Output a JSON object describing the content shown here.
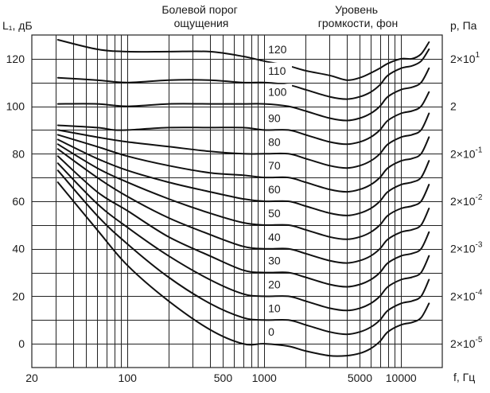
{
  "chart_data": {
    "type": "line",
    "title": "Уровень громкости, фон",
    "annotation": "Болевой порог ощущения",
    "y_label_left": "L₁, дБ",
    "y_label_right": "p, Па",
    "x_label": "f, Гц",
    "x_scale": "log",
    "x_range": [
      20,
      20000
    ],
    "y_range": [
      -10,
      130
    ],
    "grid": true,
    "x_ticks": [
      {
        "v": 20,
        "t": "20"
      },
      {
        "v": 100,
        "t": "100"
      },
      {
        "v": 500,
        "t": "500"
      },
      {
        "v": 1000,
        "t": "1000"
      },
      {
        "v": 5000,
        "t": "5000"
      },
      {
        "v": 10000,
        "t": "10000"
      }
    ],
    "y_ticks": [
      {
        "v": 120,
        "t": "120"
      },
      {
        "v": 100,
        "t": "100"
      },
      {
        "v": 80,
        "t": "80"
      },
      {
        "v": 60,
        "t": "60"
      },
      {
        "v": 40,
        "t": "40"
      },
      {
        "v": 20,
        "t": "20"
      },
      {
        "v": 0,
        "t": "0"
      }
    ],
    "right_ticks": [
      {
        "v": 120,
        "base": "2×10",
        "exp": "1"
      },
      {
        "v": 100,
        "base": "2",
        "exp": ""
      },
      {
        "v": 80,
        "base": "2×10",
        "exp": "-1"
      },
      {
        "v": 60,
        "base": "2×10",
        "exp": "-2"
      },
      {
        "v": 40,
        "base": "2×10",
        "exp": "-3"
      },
      {
        "v": 20,
        "base": "2×10",
        "exp": "-4"
      },
      {
        "v": 0,
        "base": "2×10",
        "exp": "-5"
      }
    ],
    "series": [
      {
        "name": "0",
        "label": "0",
        "points": [
          [
            31,
            68
          ],
          [
            60,
            48
          ],
          [
            100,
            33
          ],
          [
            200,
            18
          ],
          [
            400,
            6
          ],
          [
            700,
            0
          ],
          [
            1000,
            0
          ],
          [
            1500,
            -1
          ],
          [
            2000,
            -3
          ],
          [
            3000,
            -5
          ],
          [
            4000,
            -5
          ],
          [
            5000,
            -4
          ],
          [
            6000,
            -2
          ],
          [
            7000,
            1
          ],
          [
            8000,
            5
          ],
          [
            10000,
            8
          ],
          [
            12000,
            9
          ],
          [
            14000,
            11
          ],
          [
            16000,
            17
          ]
        ]
      },
      {
        "name": "10",
        "label": "10",
        "points": [
          [
            31,
            73
          ],
          [
            60,
            54
          ],
          [
            100,
            42
          ],
          [
            200,
            28
          ],
          [
            400,
            17
          ],
          [
            700,
            11
          ],
          [
            1000,
            10
          ],
          [
            1500,
            10
          ],
          [
            2000,
            8
          ],
          [
            3000,
            5
          ],
          [
            4000,
            4
          ],
          [
            5000,
            5
          ],
          [
            6000,
            7
          ],
          [
            7000,
            10
          ],
          [
            8000,
            14
          ],
          [
            10000,
            17
          ],
          [
            12000,
            18
          ],
          [
            14000,
            20
          ],
          [
            16000,
            27
          ]
        ]
      },
      {
        "name": "20",
        "label": "20",
        "points": [
          [
            31,
            76
          ],
          [
            60,
            59
          ],
          [
            100,
            49
          ],
          [
            200,
            37
          ],
          [
            400,
            27
          ],
          [
            700,
            21
          ],
          [
            1000,
            20
          ],
          [
            1500,
            20
          ],
          [
            2000,
            18
          ],
          [
            3000,
            15
          ],
          [
            4000,
            14
          ],
          [
            5000,
            15
          ],
          [
            6000,
            17
          ],
          [
            7000,
            20
          ],
          [
            8000,
            24
          ],
          [
            10000,
            27
          ],
          [
            12000,
            28
          ],
          [
            14000,
            30
          ],
          [
            16000,
            37
          ]
        ]
      },
      {
        "name": "30",
        "label": "30",
        "points": [
          [
            31,
            79
          ],
          [
            60,
            64
          ],
          [
            100,
            56
          ],
          [
            200,
            45
          ],
          [
            400,
            37
          ],
          [
            700,
            31
          ],
          [
            1000,
            30
          ],
          [
            1500,
            30
          ],
          [
            2000,
            28
          ],
          [
            3000,
            25
          ],
          [
            4000,
            24
          ],
          [
            5000,
            25
          ],
          [
            6000,
            27
          ],
          [
            7000,
            30
          ],
          [
            8000,
            34
          ],
          [
            10000,
            37
          ],
          [
            12000,
            38
          ],
          [
            14000,
            40
          ],
          [
            16000,
            47
          ]
        ]
      },
      {
        "name": "40",
        "label": "40",
        "points": [
          [
            31,
            82
          ],
          [
            60,
            70
          ],
          [
            100,
            62
          ],
          [
            200,
            53
          ],
          [
            400,
            46
          ],
          [
            700,
            41
          ],
          [
            1000,
            40
          ],
          [
            1500,
            40
          ],
          [
            2000,
            38
          ],
          [
            3000,
            35
          ],
          [
            4000,
            34
          ],
          [
            5000,
            35
          ],
          [
            6000,
            37
          ],
          [
            7000,
            40
          ],
          [
            8000,
            44
          ],
          [
            10000,
            47
          ],
          [
            12000,
            48
          ],
          [
            14000,
            50
          ],
          [
            16000,
            57
          ]
        ]
      },
      {
        "name": "50",
        "label": "50",
        "points": [
          [
            31,
            84
          ],
          [
            60,
            74
          ],
          [
            100,
            68
          ],
          [
            200,
            61
          ],
          [
            400,
            55
          ],
          [
            700,
            51
          ],
          [
            1000,
            50
          ],
          [
            1500,
            50
          ],
          [
            2000,
            48
          ],
          [
            3000,
            45
          ],
          [
            4000,
            44
          ],
          [
            5000,
            45
          ],
          [
            6000,
            47
          ],
          [
            7000,
            50
          ],
          [
            8000,
            54
          ],
          [
            10000,
            57
          ],
          [
            12000,
            58
          ],
          [
            14000,
            60
          ],
          [
            16000,
            67
          ]
        ]
      },
      {
        "name": "60",
        "label": "60",
        "points": [
          [
            31,
            86
          ],
          [
            60,
            78
          ],
          [
            100,
            73
          ],
          [
            200,
            68
          ],
          [
            400,
            64
          ],
          [
            700,
            61
          ],
          [
            1000,
            60
          ],
          [
            1500,
            60
          ],
          [
            2000,
            58
          ],
          [
            3000,
            55
          ],
          [
            4000,
            54
          ],
          [
            5000,
            55
          ],
          [
            6000,
            57
          ],
          [
            7000,
            60
          ],
          [
            8000,
            64
          ],
          [
            10000,
            67
          ],
          [
            12000,
            68
          ],
          [
            14000,
            70
          ],
          [
            16000,
            77
          ]
        ]
      },
      {
        "name": "70",
        "label": "70",
        "points": [
          [
            31,
            88
          ],
          [
            60,
            83
          ],
          [
            100,
            79
          ],
          [
            200,
            75
          ],
          [
            400,
            72
          ],
          [
            700,
            71
          ],
          [
            1000,
            70
          ],
          [
            1500,
            70
          ],
          [
            2000,
            68
          ],
          [
            3000,
            65
          ],
          [
            4000,
            64
          ],
          [
            5000,
            65
          ],
          [
            6000,
            67
          ],
          [
            7000,
            70
          ],
          [
            8000,
            74
          ],
          [
            10000,
            77
          ],
          [
            12000,
            78
          ],
          [
            14000,
            80
          ],
          [
            16000,
            87
          ]
        ]
      },
      {
        "name": "80",
        "label": "80",
        "points": [
          [
            31,
            90
          ],
          [
            60,
            87
          ],
          [
            100,
            85
          ],
          [
            200,
            83
          ],
          [
            400,
            81
          ],
          [
            700,
            80
          ],
          [
            1000,
            80
          ],
          [
            1500,
            80
          ],
          [
            2000,
            78
          ],
          [
            3000,
            75
          ],
          [
            4000,
            74
          ],
          [
            5000,
            75
          ],
          [
            6000,
            77
          ],
          [
            7000,
            80
          ],
          [
            8000,
            84
          ],
          [
            10000,
            87
          ],
          [
            12000,
            88
          ],
          [
            14000,
            90
          ],
          [
            16000,
            97
          ]
        ]
      },
      {
        "name": "90",
        "label": "90",
        "points": [
          [
            31,
            92
          ],
          [
            60,
            91
          ],
          [
            80,
            90
          ],
          [
            100,
            90
          ],
          [
            200,
            91
          ],
          [
            400,
            91
          ],
          [
            700,
            91
          ],
          [
            1000,
            90
          ],
          [
            1500,
            90
          ],
          [
            2000,
            88
          ],
          [
            3000,
            85
          ],
          [
            4000,
            84
          ],
          [
            5000,
            85
          ],
          [
            6000,
            87
          ],
          [
            7000,
            90
          ],
          [
            8000,
            94
          ],
          [
            10000,
            97
          ],
          [
            12000,
            98
          ],
          [
            14000,
            100
          ],
          [
            16000,
            106
          ]
        ]
      },
      {
        "name": "100",
        "label": "100",
        "points": [
          [
            31,
            101
          ],
          [
            60,
            101
          ],
          [
            100,
            100
          ],
          [
            200,
            101
          ],
          [
            400,
            101
          ],
          [
            700,
            101
          ],
          [
            1000,
            101
          ],
          [
            1500,
            100
          ],
          [
            2000,
            98
          ],
          [
            3000,
            95
          ],
          [
            4000,
            94
          ],
          [
            5000,
            95
          ],
          [
            6000,
            97
          ],
          [
            7000,
            100
          ],
          [
            8000,
            104
          ],
          [
            10000,
            107
          ],
          [
            12000,
            108
          ],
          [
            14000,
            110
          ],
          [
            16000,
            116
          ]
        ]
      },
      {
        "name": "110",
        "label": "110",
        "points": [
          [
            31,
            112
          ],
          [
            60,
            111
          ],
          [
            100,
            110
          ],
          [
            200,
            111
          ],
          [
            400,
            111
          ],
          [
            700,
            110
          ],
          [
            1000,
            110
          ],
          [
            1500,
            109
          ],
          [
            2000,
            107
          ],
          [
            3000,
            104
          ],
          [
            4000,
            103
          ],
          [
            5000,
            104
          ],
          [
            6000,
            106
          ],
          [
            7000,
            109
          ],
          [
            8000,
            113
          ],
          [
            10000,
            116
          ],
          [
            12000,
            117
          ],
          [
            14000,
            119
          ],
          [
            16000,
            124
          ]
        ]
      },
      {
        "name": "120",
        "label": "120",
        "points": [
          [
            31,
            128
          ],
          [
            60,
            124
          ],
          [
            100,
            123
          ],
          [
            200,
            123
          ],
          [
            400,
            123
          ],
          [
            700,
            121
          ],
          [
            1000,
            119
          ],
          [
            1500,
            117
          ],
          [
            2000,
            115
          ],
          [
            3000,
            113
          ],
          [
            4000,
            111
          ],
          [
            5000,
            112
          ],
          [
            6000,
            114
          ],
          [
            7000,
            116
          ],
          [
            8000,
            118
          ],
          [
            10000,
            120
          ],
          [
            12000,
            120
          ],
          [
            14000,
            122
          ],
          [
            16000,
            127
          ]
        ]
      }
    ]
  }
}
